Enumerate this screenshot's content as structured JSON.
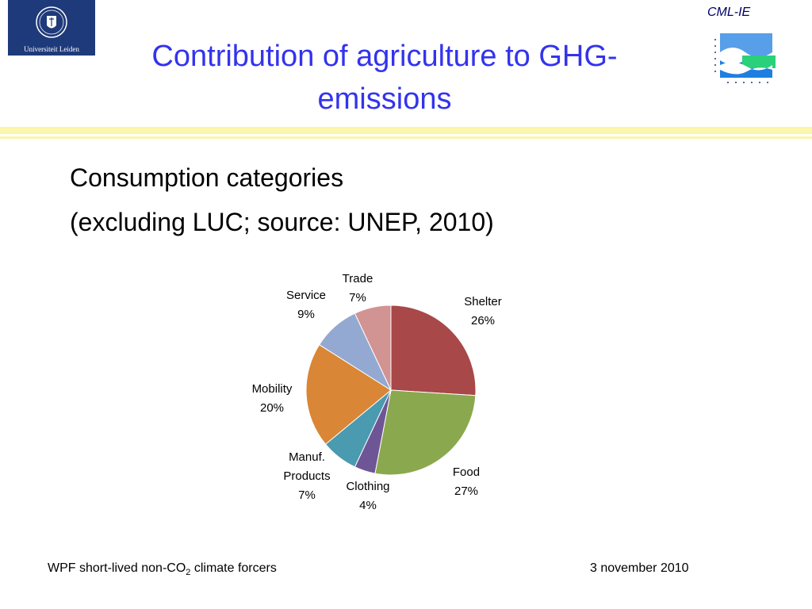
{
  "header": {
    "logo_text": "Universiteit Leiden",
    "title": "Contribution of agriculture to GHG-emissions",
    "cml_label": "CML-IE"
  },
  "subtitle": {
    "line1": "Consumption categories",
    "line2": "(excluding LUC; source: UNEP, 2010)"
  },
  "chart_data": {
    "type": "pie",
    "categories": [
      "Shelter",
      "Food",
      "Clothing",
      "Manuf. Products",
      "Mobility",
      "Service",
      "Trade"
    ],
    "values": [
      26,
      27,
      4,
      7,
      20,
      9,
      7
    ],
    "value_labels": [
      "26%",
      "27%",
      "4%",
      "7%",
      "20%",
      "9%",
      "7%"
    ],
    "label_lines": [
      [
        "Shelter",
        "26%"
      ],
      [
        "Food",
        "27%"
      ],
      [
        "Clothing",
        "4%"
      ],
      [
        "Manuf.",
        "Products",
        "7%"
      ],
      [
        "Mobility",
        "20%"
      ],
      [
        "Service",
        "9%"
      ],
      [
        "Trade",
        "7%"
      ]
    ],
    "colors": [
      "#a84848",
      "#8aa84e",
      "#6e5696",
      "#4a9ab0",
      "#d98636",
      "#93a9d1",
      "#d29393"
    ],
    "start": "12 o'clock",
    "direction": "clockwise",
    "legend": "none"
  },
  "footer": {
    "left_main": "WPF short-lived non-CO",
    "left_sub": "2",
    "left_end": " climate forcers",
    "date": "3 november 2010"
  }
}
